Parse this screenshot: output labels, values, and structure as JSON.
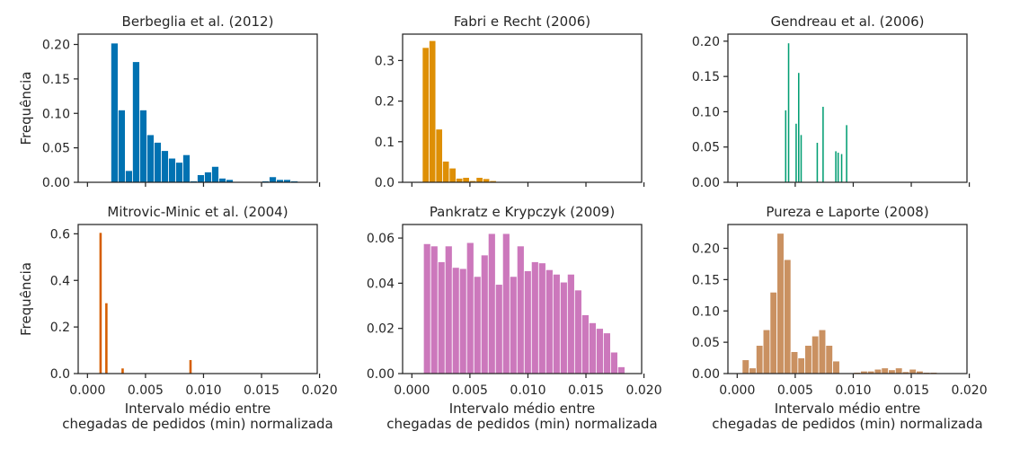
{
  "chart_data": [
    {
      "type": "bar",
      "title": "Berbeglia et al. (2012)",
      "ylabel": "Frequência",
      "xlabel": "",
      "color": "#0072b2",
      "xlim": [
        -0.0008,
        0.0198
      ],
      "ylim": [
        0,
        0.215
      ],
      "yticks": [
        0,
        0.05,
        0.1,
        0.15,
        0.2
      ],
      "ytick_labels": [
        "0.00",
        "0.05",
        "0.10",
        "0.15",
        "0.20"
      ],
      "xticks": [
        0,
        0.005,
        0.01,
        0.015,
        0.02
      ],
      "xtick_labels": [],
      "bin_width": 0.00062,
      "bins": [
        [
          0.00233,
          0.202
        ],
        [
          0.00295,
          0.105
        ],
        [
          0.00357,
          0.017
        ],
        [
          0.00419,
          0.175
        ],
        [
          0.00481,
          0.105
        ],
        [
          0.00543,
          0.069
        ],
        [
          0.00605,
          0.058
        ],
        [
          0.00667,
          0.046
        ],
        [
          0.00729,
          0.035
        ],
        [
          0.00791,
          0.029
        ],
        [
          0.00853,
          0.04
        ],
        [
          0.00915,
          0.002
        ],
        [
          0.00977,
          0.011
        ],
        [
          0.01039,
          0.015
        ],
        [
          0.01101,
          0.023
        ],
        [
          0.01163,
          0.006
        ],
        [
          0.01225,
          0.004
        ],
        [
          0.01287,
          0.0
        ],
        [
          0.01349,
          0.0
        ],
        [
          0.01411,
          0.0
        ],
        [
          0.01473,
          0.0
        ],
        [
          0.01535,
          0.002
        ],
        [
          0.01597,
          0.008
        ],
        [
          0.01659,
          0.004
        ],
        [
          0.01721,
          0.004
        ],
        [
          0.01783,
          0.002
        ]
      ]
    },
    {
      "type": "bar",
      "title": "Fabri e Recht (2006)",
      "ylabel": "",
      "xlabel": "",
      "color": "#de8f05",
      "xlim": [
        -0.0008,
        0.0198
      ],
      "ylim": [
        0,
        0.365
      ],
      "yticks": [
        0,
        0.1,
        0.2,
        0.3
      ],
      "ytick_labels": [
        "0.0",
        "0.1",
        "0.2",
        "0.3"
      ],
      "xticks": [
        0,
        0.005,
        0.01,
        0.015,
        0.02
      ],
      "xtick_labels": [],
      "bin_width": 0.00058,
      "bins": [
        [
          0.00119,
          0.332
        ],
        [
          0.00177,
          0.349
        ],
        [
          0.00235,
          0.131
        ],
        [
          0.00293,
          0.052
        ],
        [
          0.00351,
          0.035
        ],
        [
          0.00409,
          0.01
        ],
        [
          0.00467,
          0.012
        ],
        [
          0.00525,
          0.004
        ],
        [
          0.00583,
          0.012
        ],
        [
          0.00641,
          0.009
        ],
        [
          0.00699,
          0.004
        ]
      ]
    },
    {
      "type": "bar",
      "title": "Gendreau et al. (2006)",
      "ylabel": "",
      "xlabel": "",
      "color": "#029e73",
      "xlim": [
        -0.0008,
        0.0198
      ],
      "ylim": [
        0,
        0.21
      ],
      "yticks": [
        0,
        0.05,
        0.1,
        0.15,
        0.2
      ],
      "ytick_labels": [
        "0.00",
        "0.05",
        "0.10",
        "0.15",
        "0.20"
      ],
      "xticks": [
        0,
        0.005,
        0.01,
        0.015,
        0.02
      ],
      "xtick_labels": [],
      "bin_width": 0.00012,
      "bins": [
        [
          0.00418,
          0.102
        ],
        [
          0.00443,
          0.197
        ],
        [
          0.00508,
          0.083
        ],
        [
          0.0053,
          0.155
        ],
        [
          0.00551,
          0.067
        ],
        [
          0.0069,
          0.056
        ],
        [
          0.0074,
          0.107
        ],
        [
          0.0085,
          0.044
        ],
        [
          0.0087,
          0.042
        ],
        [
          0.009,
          0.04
        ],
        [
          0.00943,
          0.081
        ]
      ]
    },
    {
      "type": "bar",
      "title": "Mitrovic-Minic et al. (2004)",
      "ylabel": "Frequência",
      "xlabel": "Intervalo médio entre chegadas de pedidos (min) normalizada",
      "color": "#d55e00",
      "xlim": [
        -0.0008,
        0.0198
      ],
      "ylim": [
        0,
        0.64
      ],
      "yticks": [
        0,
        0.2,
        0.4,
        0.6
      ],
      "ytick_labels": [
        "0.0",
        "0.2",
        "0.4",
        "0.6"
      ],
      "xticks": [
        0,
        0.005,
        0.01,
        0.015,
        0.02
      ],
      "xtick_labels": [
        "0.000",
        "0.005",
        "0.010",
        "0.015",
        "0.020"
      ],
      "bin_width": 0.0002,
      "bins": [
        [
          0.00113,
          0.604
        ],
        [
          0.00163,
          0.302
        ],
        [
          0.00303,
          0.022
        ],
        [
          0.00888,
          0.058
        ]
      ]
    },
    {
      "type": "bar",
      "title": "Pankratz e Krypczyk (2009)",
      "ylabel": "",
      "xlabel": "Intervalo médio entre chegadas de pedidos (min) normalizada",
      "color": "#cc78bc",
      "xlim": [
        -0.0008,
        0.0198
      ],
      "ylim": [
        0,
        0.066
      ],
      "yticks": [
        0,
        0.02,
        0.04,
        0.06
      ],
      "ytick_labels": [
        "0.00",
        "0.02",
        "0.04",
        "0.06"
      ],
      "xticks": [
        0,
        0.005,
        0.01,
        0.015,
        0.02
      ],
      "xtick_labels": [
        "0.000",
        "0.005",
        "0.010",
        "0.015",
        "0.020"
      ],
      "bin_width": 0.00062,
      "bins": [
        [
          0.00131,
          0.0575
        ],
        [
          0.00193,
          0.0565
        ],
        [
          0.00255,
          0.0495
        ],
        [
          0.00317,
          0.0565
        ],
        [
          0.00379,
          0.047
        ],
        [
          0.00441,
          0.0465
        ],
        [
          0.00503,
          0.058
        ],
        [
          0.00565,
          0.043
        ],
        [
          0.00627,
          0.0525
        ],
        [
          0.00689,
          0.062
        ],
        [
          0.00751,
          0.0395
        ],
        [
          0.00813,
          0.062
        ],
        [
          0.00875,
          0.043
        ],
        [
          0.00937,
          0.0565
        ],
        [
          0.00999,
          0.0455
        ],
        [
          0.01061,
          0.0495
        ],
        [
          0.01123,
          0.049
        ],
        [
          0.01185,
          0.046
        ],
        [
          0.01247,
          0.044
        ],
        [
          0.01309,
          0.0405
        ],
        [
          0.01371,
          0.044
        ],
        [
          0.01433,
          0.037
        ],
        [
          0.01495,
          0.026
        ],
        [
          0.01557,
          0.0225
        ],
        [
          0.01619,
          0.02
        ],
        [
          0.01681,
          0.018
        ],
        [
          0.01743,
          0.0095
        ],
        [
          0.01805,
          0.003
        ]
      ]
    },
    {
      "type": "bar",
      "title": "Pureza e Laporte (2008)",
      "ylabel": "",
      "xlabel": "Intervalo médio entre chegadas de pedidos (min) normalizada",
      "color": "#ca9161",
      "xlim": [
        -0.0008,
        0.0198
      ],
      "ylim": [
        0,
        0.238
      ],
      "yticks": [
        0,
        0.05,
        0.1,
        0.15,
        0.2
      ],
      "ytick_labels": [
        "0.00",
        "0.05",
        "0.10",
        "0.15",
        "0.20"
      ],
      "xticks": [
        0,
        0.005,
        0.01,
        0.015,
        0.02
      ],
      "xtick_labels": [
        "0.000",
        "0.005",
        "0.010",
        "0.015",
        "0.020"
      ],
      "bin_width": 0.0006,
      "bins": [
        [
          0.00073,
          0.022
        ],
        [
          0.00133,
          0.009
        ],
        [
          0.00193,
          0.045
        ],
        [
          0.00253,
          0.07
        ],
        [
          0.00313,
          0.13
        ],
        [
          0.00373,
          0.224
        ],
        [
          0.00433,
          0.182
        ],
        [
          0.00493,
          0.035
        ],
        [
          0.00553,
          0.025
        ],
        [
          0.00613,
          0.045
        ],
        [
          0.00673,
          0.06
        ],
        [
          0.00733,
          0.07
        ],
        [
          0.00793,
          0.045
        ],
        [
          0.00853,
          0.02
        ],
        [
          0.00913,
          0.0
        ],
        [
          0.00973,
          0.0
        ],
        [
          0.01033,
          0.002
        ],
        [
          0.01093,
          0.004
        ],
        [
          0.01153,
          0.004
        ],
        [
          0.01213,
          0.007
        ],
        [
          0.01273,
          0.009
        ],
        [
          0.01333,
          0.006
        ],
        [
          0.01393,
          0.009
        ],
        [
          0.01453,
          0.003
        ],
        [
          0.01513,
          0.007
        ],
        [
          0.01573,
          0.004
        ],
        [
          0.01633,
          0.002
        ],
        [
          0.01693,
          0.002
        ]
      ]
    }
  ]
}
